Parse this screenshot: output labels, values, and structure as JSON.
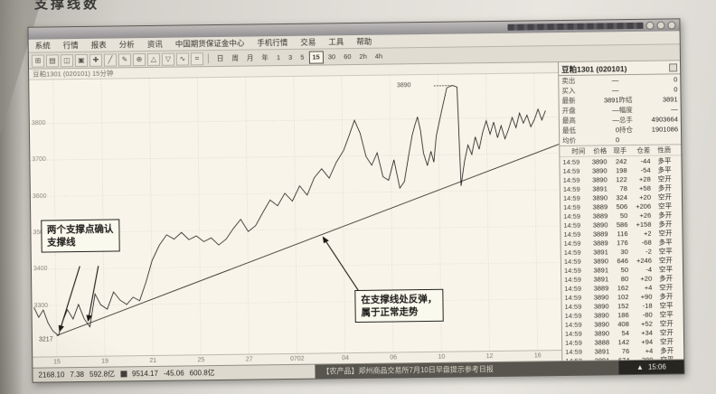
{
  "page": {
    "header_fragment": "支撑线数"
  },
  "app": {
    "menu_bar": {
      "items": [
        "系统",
        "行情",
        "报表",
        "分析",
        "资讯",
        "中国期货保证金中心",
        "手机行情",
        "交易",
        "工具",
        "帮助"
      ]
    },
    "toolbar": {
      "icons": [
        {
          "name": "new-chart-icon",
          "glyph": "⊞"
        },
        {
          "name": "open-file-icon",
          "glyph": "▤"
        },
        {
          "name": "save-icon",
          "glyph": "◫"
        },
        {
          "name": "print-icon",
          "glyph": "▣"
        },
        {
          "name": "crosshair-icon",
          "glyph": "✚"
        },
        {
          "name": "draw-line-icon",
          "glyph": "╱"
        },
        {
          "name": "text-tool-icon",
          "glyph": "✎"
        },
        {
          "name": "zoom-in-icon",
          "glyph": "⊕"
        },
        {
          "name": "up-marker-icon",
          "glyph": "△"
        },
        {
          "name": "down-marker-icon",
          "glyph": "▽"
        },
        {
          "name": "wave-tool-icon",
          "glyph": "∿"
        },
        {
          "name": "settings-icon",
          "glyph": "⌗"
        }
      ],
      "periods": [
        {
          "label": "日"
        },
        {
          "label": "周"
        },
        {
          "label": "月"
        },
        {
          "label": "年"
        },
        {
          "label": "1"
        },
        {
          "label": "3"
        },
        {
          "label": "5"
        },
        {
          "label": "15",
          "active": true
        },
        {
          "label": "30"
        },
        {
          "label": "60"
        },
        {
          "label": "2h"
        },
        {
          "label": "4h"
        }
      ]
    },
    "chart_header": {
      "label": "豆粕1301 (020101) 15分钟"
    },
    "quote_panel": {
      "title": "豆粕1301 (020101)",
      "rows": [
        {
          "l1": "卖出",
          "v1": "—",
          "l2": "",
          "v2": "0"
        },
        {
          "l1": "买入",
          "v1": "—",
          "l2": "",
          "v2": "0"
        },
        {
          "l1": "最新",
          "v1": "3891",
          "l2": "昨结",
          "v2": "3891"
        },
        {
          "l1": "开盘",
          "v1": "—",
          "l2": "幅度",
          "v2": "—"
        },
        {
          "l1": "最高",
          "v1": "—",
          "l2": "总手",
          "v2": "4903664"
        },
        {
          "l1": "最低",
          "v1": "0",
          "l2": "持仓",
          "v2": "1901086"
        },
        {
          "l1": "均价",
          "v1": "0",
          "l2": "",
          "v2": ""
        }
      ],
      "table_headers": [
        "时间",
        "价格",
        "现手",
        "仓差",
        "性质"
      ],
      "ticks": [
        [
          "14:59",
          "3890",
          "242",
          "-44",
          "多平"
        ],
        [
          "14:59",
          "3890",
          "198",
          "-54",
          "多平"
        ],
        [
          "14:59",
          "3890",
          "122",
          "+28",
          "空开"
        ],
        [
          "14:59",
          "3891",
          "78",
          "+58",
          "多开"
        ],
        [
          "14:59",
          "3890",
          "324",
          "+20",
          "空开"
        ],
        [
          "14:59",
          "3889",
          "506",
          "+206",
          "空平"
        ],
        [
          "14:59",
          "3889",
          "50",
          "+26",
          "多开"
        ],
        [
          "14:59",
          "3890",
          "586",
          "+158",
          "多开"
        ],
        [
          "14:59",
          "3889",
          "116",
          "+2",
          "空开"
        ],
        [
          "14:59",
          "3889",
          "176",
          "-68",
          "多平"
        ],
        [
          "14:59",
          "3891",
          "30",
          "-2",
          "空平"
        ],
        [
          "14:59",
          "3890",
          "646",
          "+246",
          "空开"
        ],
        [
          "14:59",
          "3891",
          "50",
          "-4",
          "空平"
        ],
        [
          "14:59",
          "3891",
          "80",
          "+20",
          "多开"
        ],
        [
          "14:59",
          "3889",
          "162",
          "+4",
          "空开"
        ],
        [
          "14:59",
          "3890",
          "102",
          "+90",
          "多开"
        ],
        [
          "14:59",
          "3890",
          "152",
          "-18",
          "空平"
        ],
        [
          "14:59",
          "3890",
          "186",
          "-80",
          "空平"
        ],
        [
          "14:59",
          "3890",
          "408",
          "+52",
          "空开"
        ],
        [
          "14:59",
          "3890",
          "54",
          "+34",
          "空开"
        ],
        [
          "14:59",
          "3888",
          "142",
          "+94",
          "空开"
        ],
        [
          "14:59",
          "3891",
          "76",
          "+4",
          "多开"
        ],
        [
          "14:59",
          "3891",
          "674",
          "-380",
          "空平"
        ]
      ]
    },
    "status_bar": {
      "index1_value": "2168.10",
      "index1_change": "7.38",
      "index1_amount": "592.8亿",
      "index2_value": "9514.17",
      "index2_change": "-45.06",
      "index2_amount": "600.8亿",
      "news": "【农产品】郑州商品交易所7月10日早盘提示参考日报",
      "time": "15:06"
    }
  },
  "chart_data": {
    "type": "candlestick",
    "title": "豆粕1301 (020101) 15分钟",
    "ylabel": "价格",
    "ylim": [
      3160,
      3920
    ],
    "y_ticks": [
      3800,
      3700,
      3600,
      3500,
      3400,
      3300
    ],
    "x_tick_labels": [
      "15",
      "19",
      "21",
      "25",
      "27",
      "0702",
      "04",
      "06",
      "10",
      "12",
      "16"
    ],
    "grid": true,
    "price_marker": {
      "label": "3890",
      "price": 3890
    },
    "low_marker": {
      "label": "3217",
      "price": 3217
    },
    "support_line": [
      [
        26,
        3217
      ],
      [
        570,
        3725
      ]
    ],
    "price_path": [
      [
        2,
        3295
      ],
      [
        7,
        3268
      ],
      [
        12,
        3288
      ],
      [
        17,
        3252
      ],
      [
        22,
        3230
      ],
      [
        28,
        3217
      ],
      [
        33,
        3258
      ],
      [
        38,
        3288
      ],
      [
        44,
        3262
      ],
      [
        50,
        3302
      ],
      [
        56,
        3262
      ],
      [
        62,
        3240
      ],
      [
        68,
        3330
      ],
      [
        74,
        3300
      ],
      [
        81,
        3288
      ],
      [
        88,
        3335
      ],
      [
        95,
        3312
      ],
      [
        102,
        3300
      ],
      [
        109,
        3320
      ],
      [
        116,
        3310
      ],
      [
        123,
        3360
      ],
      [
        130,
        3420
      ],
      [
        138,
        3462
      ],
      [
        146,
        3490
      ],
      [
        154,
        3478
      ],
      [
        162,
        3496
      ],
      [
        170,
        3476
      ],
      [
        178,
        3486
      ],
      [
        186,
        3470
      ],
      [
        194,
        3480
      ],
      [
        202,
        3460
      ],
      [
        210,
        3476
      ],
      [
        218,
        3505
      ],
      [
        226,
        3530
      ],
      [
        234,
        3496
      ],
      [
        242,
        3512
      ],
      [
        250,
        3548
      ],
      [
        258,
        3582
      ],
      [
        266,
        3566
      ],
      [
        274,
        3600
      ],
      [
        282,
        3578
      ],
      [
        290,
        3620
      ],
      [
        298,
        3594
      ],
      [
        306,
        3642
      ],
      [
        314,
        3666
      ],
      [
        322,
        3640
      ],
      [
        330,
        3684
      ],
      [
        338,
        3716
      ],
      [
        344,
        3756
      ],
      [
        350,
        3798
      ],
      [
        356,
        3762
      ],
      [
        362,
        3698
      ],
      [
        368,
        3674
      ],
      [
        374,
        3708
      ],
      [
        380,
        3642
      ],
      [
        386,
        3632
      ],
      [
        392,
        3688
      ],
      [
        398,
        3610
      ],
      [
        403,
        3628
      ],
      [
        408,
        3700
      ],
      [
        412,
        3755
      ],
      [
        415,
        3782
      ],
      [
        418,
        3805
      ],
      [
        421,
        3768
      ],
      [
        424,
        3705
      ],
      [
        428,
        3671
      ],
      [
        432,
        3710
      ],
      [
        435,
        3680
      ],
      [
        438,
        3752
      ],
      [
        444,
        3820
      ],
      [
        450,
        3884
      ],
      [
        456,
        3890
      ],
      [
        461,
        3886
      ],
      [
        464,
        3614
      ],
      [
        468,
        3680
      ],
      [
        472,
        3726
      ],
      [
        476,
        3700
      ],
      [
        480,
        3748
      ],
      [
        484,
        3714
      ],
      [
        488,
        3760
      ],
      [
        492,
        3792
      ],
      [
        496,
        3755
      ],
      [
        500,
        3788
      ],
      [
        504,
        3745
      ],
      [
        508,
        3778
      ],
      [
        512,
        3742
      ],
      [
        516,
        3768
      ],
      [
        520,
        3800
      ],
      [
        524,
        3772
      ],
      [
        528,
        3812
      ],
      [
        532,
        3784
      ],
      [
        536,
        3806
      ],
      [
        540,
        3774
      ],
      [
        544,
        3794
      ],
      [
        548,
        3822
      ],
      [
        552,
        3792
      ],
      [
        556,
        3818
      ]
    ],
    "annotations": [
      {
        "lines": [
          "两个支撑点确认",
          "支撑线"
        ]
      },
      {
        "lines": [
          "在支撑线处反弹，",
          "属于正常走势"
        ]
      }
    ]
  }
}
